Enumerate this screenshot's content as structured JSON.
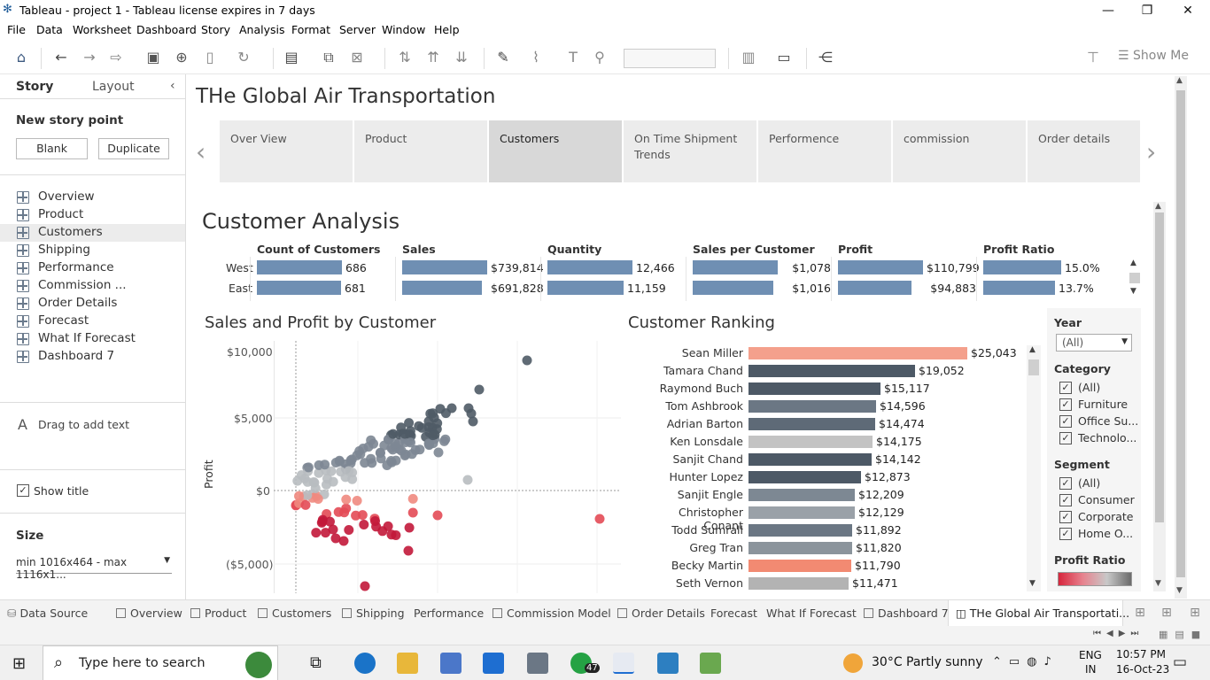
{
  "window": {
    "title": "Tableau - project 1 - Tableau license expires in 7 days"
  },
  "menu": [
    "File",
    "Data",
    "Worksheet",
    "Dashboard",
    "Story",
    "Analysis",
    "Format",
    "Server",
    "Window",
    "Help"
  ],
  "toolbar": {
    "show_me": "Show Me"
  },
  "left_panel": {
    "tab_story": "Story",
    "tab_layout": "Layout",
    "new_story_point": "New story point",
    "blank": "Blank",
    "duplicate": "Duplicate",
    "items": [
      "Overview",
      "Product",
      "Customers",
      "Shipping",
      "Performance",
      "Commission ...",
      "Order Details",
      "Forecast",
      "What If Forecast",
      "Dashboard 7"
    ],
    "drag_text": "Drag to add text",
    "show_title": "Show title",
    "size_label": "Size",
    "size_value": "min 1016x464 - max 1116x1..."
  },
  "story": {
    "title": "THe Global Air Transportation",
    "captions": [
      "Over View",
      "Product",
      "Customers",
      "On Time Shipment Trends",
      "Performence",
      "commission",
      "Order details"
    ],
    "active_index": 2
  },
  "dashboard": {
    "title": "Customer Analysis",
    "kpi_headers": [
      "Count of Customers",
      "Sales",
      "Quantity",
      "Sales per Customer",
      "Profit",
      "Profit Ratio"
    ],
    "regions": [
      "West",
      "East"
    ],
    "kpi_values": [
      [
        "686",
        "$739,814",
        "12,466",
        "$1,078",
        "$110,799",
        "15.0%"
      ],
      [
        "681",
        "$691,828",
        "11,159",
        "$1,016",
        "$94,883",
        "13.7%"
      ]
    ],
    "kpi_fractions": [
      [
        1.0,
        1.0,
        1.0,
        1.0,
        1.0,
        0.92
      ],
      [
        0.99,
        0.94,
        0.9,
        0.95,
        0.86,
        0.84
      ]
    ],
    "scatter_title": "Sales and Profit by Customer",
    "scatter_ylabel": "Profit",
    "scatter_ticks": [
      "$10,000",
      "$5,000",
      "$0",
      "($5,000)"
    ],
    "ranking_title": "Customer Ranking",
    "ranking": [
      {
        "name": "Sean Miller",
        "value": "$25,043",
        "amount": 25043,
        "color": "#f4a08c"
      },
      {
        "name": "Tamara Chand",
        "value": "$19,052",
        "amount": 19052,
        "color": "#4d5966"
      },
      {
        "name": "Raymond Buch",
        "value": "$15,117",
        "amount": 15117,
        "color": "#4d5966"
      },
      {
        "name": "Tom Ashbrook",
        "value": "$14,596",
        "amount": 14596,
        "color": "#6b7784"
      },
      {
        "name": "Adrian Barton",
        "value": "$14,474",
        "amount": 14474,
        "color": "#5e6a77"
      },
      {
        "name": "Ken Lonsdale",
        "value": "$14,175",
        "amount": 14175,
        "color": "#c3c3c3"
      },
      {
        "name": "Sanjit Chand",
        "value": "$14,142",
        "amount": 14142,
        "color": "#4d5966"
      },
      {
        "name": "Hunter Lopez",
        "value": "$12,873",
        "amount": 12873,
        "color": "#4d5966"
      },
      {
        "name": "Sanjit Engle",
        "value": "$12,209",
        "amount": 12209,
        "color": "#7d8893"
      },
      {
        "name": "Christopher Conant",
        "value": "$12,129",
        "amount": 12129,
        "color": "#9aa1a8"
      },
      {
        "name": "Todd Sumrall",
        "value": "$11,892",
        "amount": 11892,
        "color": "#6b7784"
      },
      {
        "name": "Greg Tran",
        "value": "$11,820",
        "amount": 11820,
        "color": "#8b949c"
      },
      {
        "name": "Becky Martin",
        "value": "$11,790",
        "amount": 11790,
        "color": "#f28a72"
      },
      {
        "name": "Seth Vernon",
        "value": "$11,471",
        "amount": 11471,
        "color": "#b3b3b3"
      }
    ],
    "filters": {
      "year_label": "Year",
      "year_value": "(All)",
      "category_label": "Category",
      "category_items": [
        "(All)",
        "Furniture",
        "Office Su...",
        "Technolo..."
      ],
      "segment_label": "Segment",
      "segment_items": [
        "(All)",
        "Consumer",
        "Corporate",
        "Home O..."
      ],
      "profit_ratio_label": "Profit Ratio",
      "profit_ratio_colors": [
        "#d7263d",
        "#e7828e",
        "#c8c8c8",
        "#6b6b6b"
      ]
    }
  },
  "sheet_tabs": [
    "Data Source",
    "Overview",
    "Product",
    "Customers",
    "Shipping",
    "Performance",
    "Commission Model",
    "Order Details",
    "Forecast",
    "What If Forecast",
    "Dashboard 7",
    "THe Global Air Transportati..."
  ],
  "taskbar": {
    "search_placeholder": "Type here to search",
    "weather": "30°C  Partly sunny",
    "lang": "ENG",
    "region": "IN",
    "time": "10:57 PM",
    "date": "16-Oct-23",
    "whatsapp_badge": "47"
  }
}
